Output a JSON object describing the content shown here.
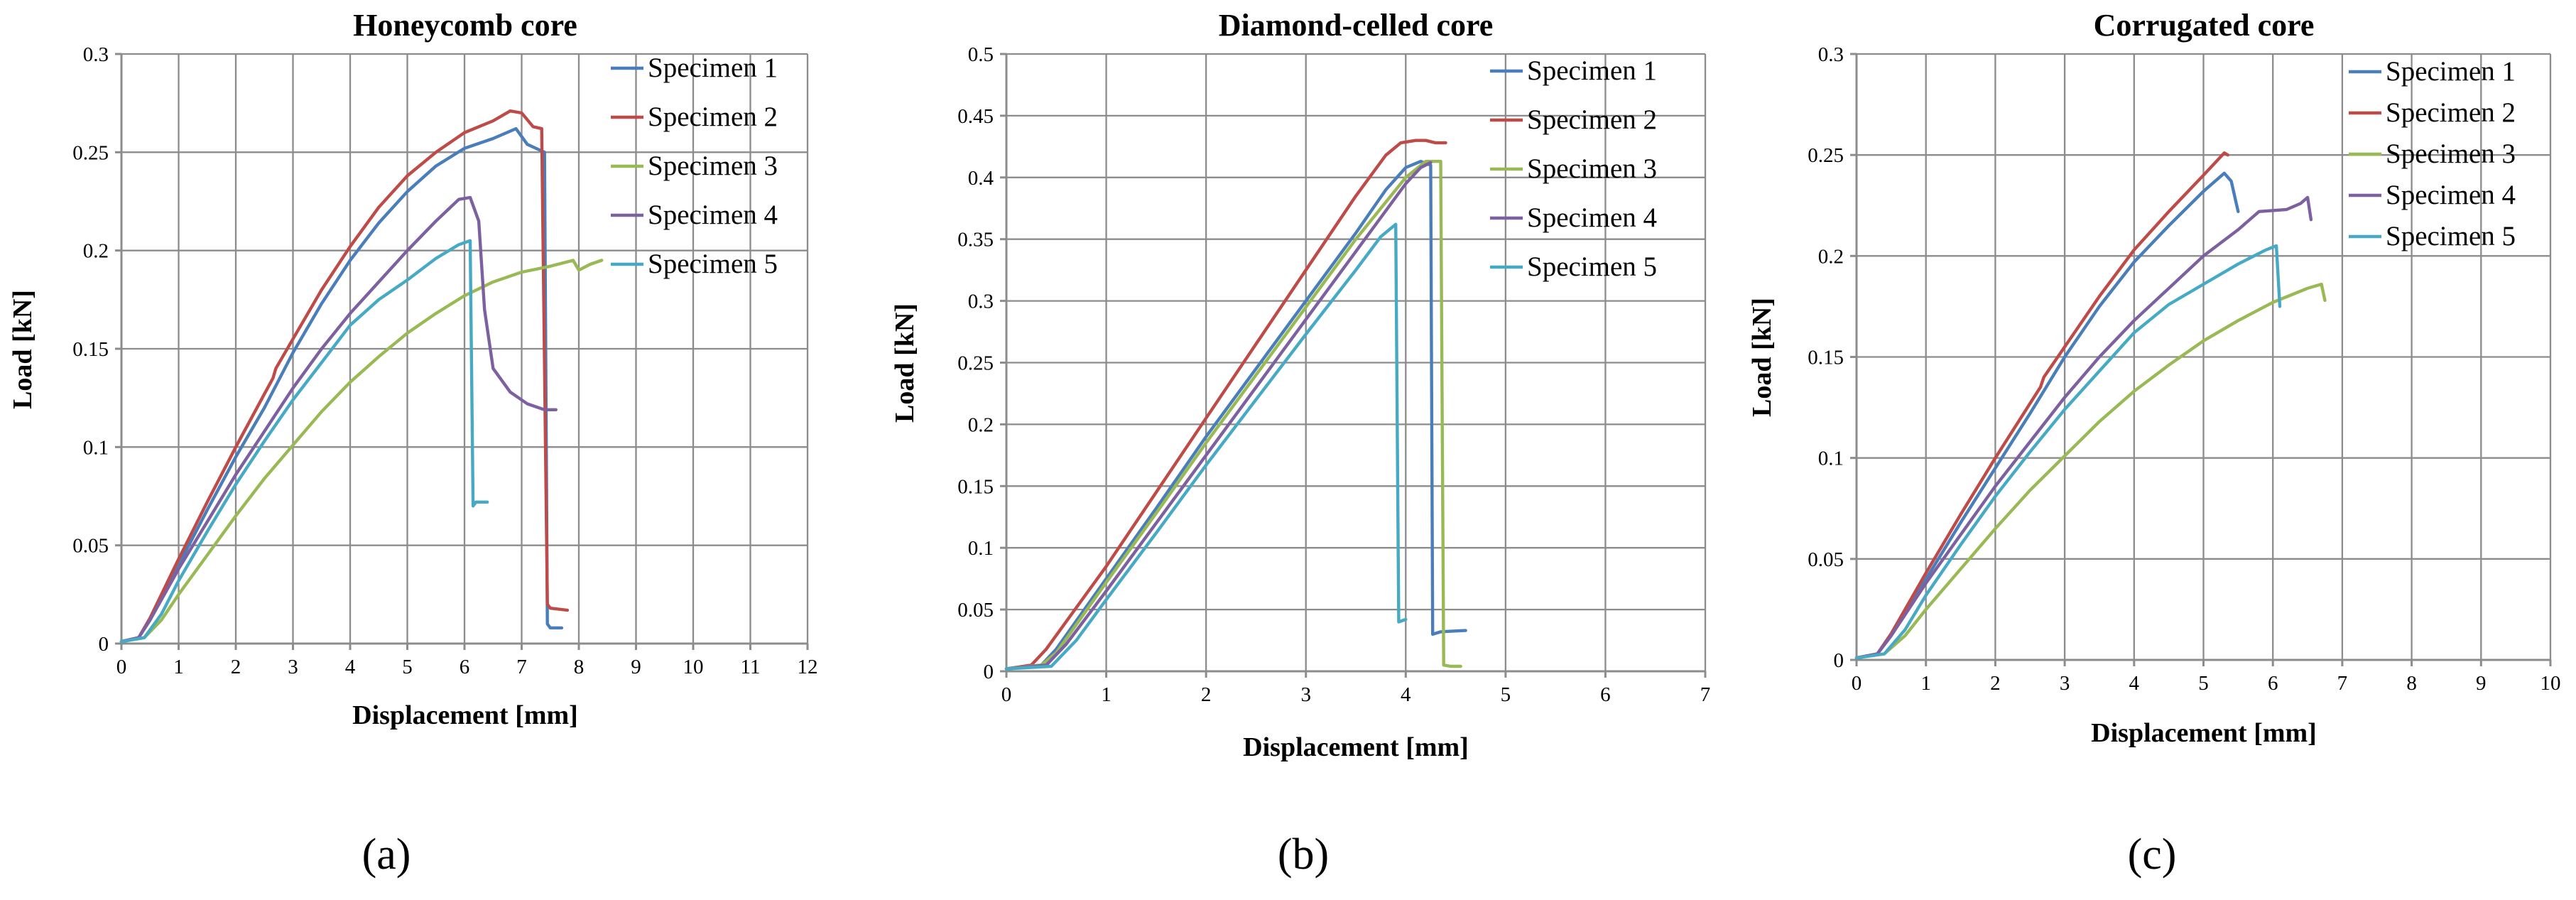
{
  "colors": {
    "specimen_1": "#4a7ebb",
    "specimen_2": "#be4b48",
    "specimen_3": "#98b954",
    "specimen_4": "#7d60a0",
    "specimen_5": "#46aac5"
  },
  "panel_labels": [
    "(a)",
    "(b)",
    "(c)"
  ],
  "chart_data": [
    {
      "type": "line",
      "title": "Honeycomb core",
      "xlabel": "Displacement  [mm]",
      "ylabel": "Load [kN]",
      "xlim": [
        0,
        12
      ],
      "ylim": [
        0,
        0.3
      ],
      "x_ticks": [
        0,
        1,
        2,
        3,
        4,
        5,
        6,
        7,
        8,
        9,
        10,
        11,
        12
      ],
      "y_ticks": [
        0,
        0.05,
        0.1,
        0.15,
        0.2,
        0.25,
        0.3
      ],
      "x_tick_labels": [
        "0",
        "1",
        "2",
        "3",
        "4",
        "5",
        "6",
        "7",
        "8",
        "9",
        "10",
        "11",
        "12"
      ],
      "y_tick_labels": [
        "0",
        "0.05",
        "0.1",
        "0.15",
        "0.2",
        "0.25",
        "0.3"
      ],
      "grid": true,
      "legend": "top-right",
      "series": [
        {
          "name": "Specimen 1",
          "x": [
            0,
            0.3,
            0.5,
            1,
            1.5,
            2,
            2.5,
            3,
            3.5,
            4,
            4.5,
            5,
            5.5,
            6,
            6.5,
            6.9,
            7.1,
            7.4,
            7.45,
            7.5,
            7.7
          ],
          "y": [
            0.001,
            0.003,
            0.012,
            0.04,
            0.068,
            0.095,
            0.12,
            0.148,
            0.173,
            0.195,
            0.214,
            0.23,
            0.243,
            0.252,
            0.257,
            0.262,
            0.254,
            0.25,
            0.01,
            0.008,
            0.008
          ]
        },
        {
          "name": "Specimen 2",
          "x": [
            0,
            0.3,
            0.5,
            1,
            1.5,
            2,
            2.5,
            2.65,
            2.7,
            3,
            3.5,
            4,
            4.5,
            5,
            5.5,
            6,
            6.5,
            6.8,
            7.0,
            7.2,
            7.35,
            7.45,
            7.5,
            7.8
          ],
          "y": [
            0.001,
            0.003,
            0.013,
            0.043,
            0.072,
            0.1,
            0.127,
            0.135,
            0.14,
            0.155,
            0.18,
            0.202,
            0.222,
            0.238,
            0.25,
            0.26,
            0.266,
            0.271,
            0.27,
            0.263,
            0.262,
            0.02,
            0.018,
            0.017
          ]
        },
        {
          "name": "Specimen 3",
          "x": [
            0,
            0.4,
            0.7,
            1,
            1.5,
            2,
            2.5,
            3,
            3.5,
            4,
            4.5,
            5,
            5.5,
            6,
            6.5,
            7,
            7.5,
            7.9,
            8.0,
            8.2,
            8.4
          ],
          "y": [
            0.001,
            0.003,
            0.012,
            0.025,
            0.045,
            0.065,
            0.084,
            0.101,
            0.118,
            0.133,
            0.146,
            0.158,
            0.168,
            0.177,
            0.184,
            0.189,
            0.192,
            0.195,
            0.19,
            0.193,
            0.195
          ]
        },
        {
          "name": "Specimen 4",
          "x": [
            0,
            0.3,
            0.5,
            1,
            1.5,
            2,
            2.5,
            3,
            3.5,
            4,
            4.5,
            5,
            5.5,
            5.9,
            6.1,
            6.25,
            6.35,
            6.5,
            6.8,
            7.1,
            7.4,
            7.6
          ],
          "y": [
            0.001,
            0.003,
            0.012,
            0.038,
            0.062,
            0.086,
            0.108,
            0.13,
            0.15,
            0.168,
            0.184,
            0.2,
            0.215,
            0.226,
            0.227,
            0.215,
            0.17,
            0.14,
            0.128,
            0.122,
            0.119,
            0.119
          ]
        },
        {
          "name": "Specimen 5",
          "x": [
            0,
            0.4,
            0.7,
            1,
            1.5,
            2,
            2.5,
            3,
            3.5,
            4,
            4.5,
            5,
            5.5,
            5.9,
            6.1,
            6.15,
            6.2,
            6.4
          ],
          "y": [
            0.001,
            0.003,
            0.015,
            0.032,
            0.057,
            0.081,
            0.103,
            0.124,
            0.143,
            0.162,
            0.175,
            0.185,
            0.196,
            0.203,
            0.205,
            0.07,
            0.072,
            0.072
          ]
        }
      ]
    },
    {
      "type": "line",
      "title": "Diamond-celled  core",
      "xlabel": "Displacement  [mm]",
      "ylabel": "Load [kN]",
      "xlim": [
        0,
        7
      ],
      "ylim": [
        0,
        0.5
      ],
      "x_ticks": [
        0,
        1,
        2,
        3,
        4,
        5,
        6,
        7
      ],
      "y_ticks": [
        0,
        0.05,
        0.1,
        0.15,
        0.2,
        0.25,
        0.3,
        0.35,
        0.4,
        0.45,
        0.5
      ],
      "x_tick_labels": [
        "0",
        "1",
        "2",
        "3",
        "4",
        "5",
        "6",
        "7"
      ],
      "y_tick_labels": [
        "0",
        "0.05",
        "0.1",
        "0.15",
        "0.2",
        "0.25",
        "0.3",
        "0.35",
        "0.4",
        "0.45",
        "0.5"
      ],
      "grid": true,
      "legend": "top-right",
      "series": [
        {
          "name": "Specimen 1",
          "x": [
            0,
            0.35,
            0.5,
            1,
            1.5,
            2,
            2.5,
            3,
            3.5,
            3.8,
            4.0,
            4.15,
            4.25,
            4.27,
            4.35,
            4.6
          ],
          "y": [
            0.002,
            0.005,
            0.018,
            0.075,
            0.132,
            0.19,
            0.245,
            0.3,
            0.355,
            0.39,
            0.408,
            0.413,
            0.41,
            0.03,
            0.032,
            0.033
          ]
        },
        {
          "name": "Specimen 2",
          "x": [
            0,
            0.25,
            0.4,
            1,
            1.5,
            2,
            2.5,
            3,
            3.5,
            3.8,
            3.95,
            4.1,
            4.2,
            4.3,
            4.4
          ],
          "y": [
            0.002,
            0.005,
            0.018,
            0.085,
            0.145,
            0.205,
            0.265,
            0.325,
            0.385,
            0.418,
            0.428,
            0.43,
            0.43,
            0.428,
            0.428
          ]
        },
        {
          "name": "Specimen 3",
          "x": [
            0,
            0.35,
            0.5,
            1,
            1.5,
            2,
            2.5,
            3,
            3.5,
            4.0,
            4.2,
            4.35,
            4.38,
            4.45,
            4.55
          ],
          "y": [
            0.002,
            0.005,
            0.015,
            0.072,
            0.128,
            0.185,
            0.24,
            0.295,
            0.35,
            0.4,
            0.413,
            0.413,
            0.005,
            0.004,
            0.004
          ]
        },
        {
          "name": "Specimen 4",
          "x": [
            0,
            0.4,
            0.6,
            1,
            1.5,
            2,
            2.5,
            3,
            3.5,
            4.0,
            4.15,
            4.25
          ],
          "y": [
            0.002,
            0.005,
            0.022,
            0.065,
            0.12,
            0.175,
            0.23,
            0.285,
            0.34,
            0.395,
            0.408,
            0.412
          ]
        },
        {
          "name": "Specimen 5",
          "x": [
            0,
            0.45,
            0.7,
            1,
            1.5,
            2,
            2.5,
            3,
            3.5,
            3.75,
            3.9,
            3.93,
            4.0
          ],
          "y": [
            0.002,
            0.004,
            0.025,
            0.058,
            0.112,
            0.167,
            0.22,
            0.273,
            0.325,
            0.352,
            0.362,
            0.04,
            0.042
          ]
        }
      ]
    },
    {
      "type": "line",
      "title": "Corrugated core",
      "xlabel": "Displacement  [mm]",
      "ylabel": "Load [kN]",
      "xlim": [
        0,
        10
      ],
      "ylim": [
        0,
        0.3
      ],
      "x_ticks": [
        0,
        1,
        2,
        3,
        4,
        5,
        6,
        7,
        8,
        9,
        10
      ],
      "y_ticks": [
        0,
        0.05,
        0.1,
        0.15,
        0.2,
        0.25,
        0.3
      ],
      "x_tick_labels": [
        "0",
        "1",
        "2",
        "3",
        "4",
        "5",
        "6",
        "7",
        "8",
        "9",
        "10"
      ],
      "y_tick_labels": [
        "0",
        "0.05",
        "0.1",
        "0.15",
        "0.2",
        "0.25",
        "0.3"
      ],
      "grid": true,
      "legend": "top-right",
      "series": [
        {
          "name": "Specimen 1",
          "x": [
            0,
            0.3,
            0.5,
            1,
            1.5,
            2,
            2.5,
            3,
            3.5,
            4,
            4.5,
            5,
            5.3,
            5.4,
            5.5
          ],
          "y": [
            0.001,
            0.003,
            0.012,
            0.04,
            0.068,
            0.095,
            0.122,
            0.15,
            0.175,
            0.197,
            0.215,
            0.232,
            0.241,
            0.237,
            0.222
          ]
        },
        {
          "name": "Specimen 2",
          "x": [
            0,
            0.3,
            0.5,
            1,
            1.5,
            2,
            2.5,
            2.65,
            2.7,
            3,
            3.5,
            4,
            4.5,
            5,
            5.3,
            5.35
          ],
          "y": [
            0.001,
            0.003,
            0.013,
            0.043,
            0.072,
            0.1,
            0.127,
            0.135,
            0.14,
            0.155,
            0.18,
            0.203,
            0.222,
            0.24,
            0.251,
            0.25
          ]
        },
        {
          "name": "Specimen 3",
          "x": [
            0,
            0.4,
            0.7,
            1,
            1.5,
            2,
            2.5,
            3,
            3.5,
            4,
            4.5,
            5,
            5.5,
            6,
            6.5,
            6.7,
            6.75
          ],
          "y": [
            0.001,
            0.003,
            0.012,
            0.025,
            0.045,
            0.065,
            0.084,
            0.101,
            0.118,
            0.133,
            0.146,
            0.158,
            0.168,
            0.177,
            0.184,
            0.186,
            0.178
          ]
        },
        {
          "name": "Specimen 4",
          "x": [
            0,
            0.3,
            0.5,
            1,
            1.5,
            2,
            2.5,
            3,
            3.5,
            4,
            4.5,
            5,
            5.5,
            5.8,
            6.2,
            6.4,
            6.5,
            6.55
          ],
          "y": [
            0.001,
            0.003,
            0.012,
            0.038,
            0.062,
            0.086,
            0.108,
            0.13,
            0.15,
            0.168,
            0.184,
            0.2,
            0.213,
            0.222,
            0.223,
            0.226,
            0.229,
            0.218
          ]
        },
        {
          "name": "Specimen 5",
          "x": [
            0,
            0.4,
            0.7,
            1,
            1.5,
            2,
            2.5,
            3,
            3.5,
            4,
            4.5,
            5,
            5.5,
            5.9,
            6.05,
            6.1
          ],
          "y": [
            0.001,
            0.003,
            0.015,
            0.032,
            0.057,
            0.081,
            0.103,
            0.124,
            0.143,
            0.162,
            0.176,
            0.186,
            0.196,
            0.203,
            0.205,
            0.175
          ]
        }
      ]
    }
  ]
}
